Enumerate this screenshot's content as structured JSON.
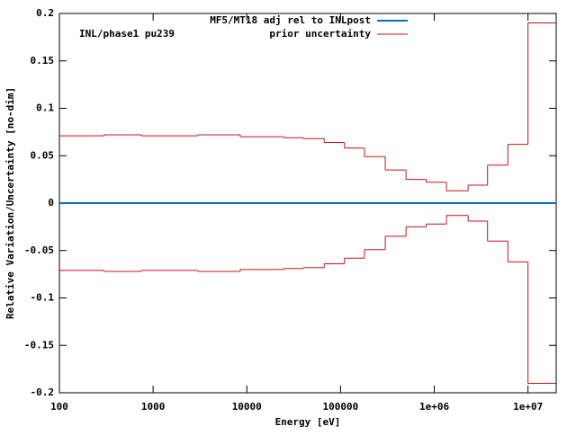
{
  "chart_data": {
    "type": "step",
    "annotation": "INL/phase1 pu239",
    "x_label": "Energy [eV]",
    "y_label": "Relative Variation/Uncertainty [no-dim]",
    "log_x": true,
    "legend": "top-right",
    "xlim": [
      100,
      20000000
    ],
    "ylim": [
      -0.2,
      0.2
    ],
    "xticks": [
      100,
      1000,
      10000,
      100000,
      {
        "value": 1000000,
        "label": "1e+06"
      },
      {
        "value": 10000000,
        "label": "1e+07"
      }
    ],
    "yticks": [
      -0.2,
      -0.15,
      -0.1,
      -0.05,
      0,
      0.05,
      0.1,
      0.15,
      0.2
    ],
    "series": [
      {
        "name": "MF5/MT18 adj rel to INLpost",
        "color": "#0072bd",
        "x": [
          100,
          20000000
        ],
        "values": [
          0,
          0
        ]
      },
      {
        "name": "prior uncertainty",
        "color": "#c0141c",
        "bins": [
          100,
          300,
          750,
          3000,
          8500,
          25000,
          40000,
          67000,
          110000,
          180000,
          300000,
          500000,
          820000,
          1350000,
          2300000,
          3700000,
          6100000,
          10000000,
          20000000
        ],
        "values": [
          0.071,
          0.072,
          0.071,
          0.072,
          0.07,
          0.069,
          0.068,
          0.064,
          0.058,
          0.049,
          0.035,
          0.025,
          0.022,
          0.013,
          0.019,
          0.04,
          0.062,
          0.19
        ],
        "lower_values": [
          -0.071,
          -0.072,
          -0.071,
          -0.072,
          -0.07,
          -0.069,
          -0.068,
          -0.064,
          -0.058,
          -0.049,
          -0.035,
          -0.025,
          -0.022,
          -0.013,
          -0.019,
          -0.04,
          -0.062,
          -0.19
        ]
      }
    ]
  }
}
